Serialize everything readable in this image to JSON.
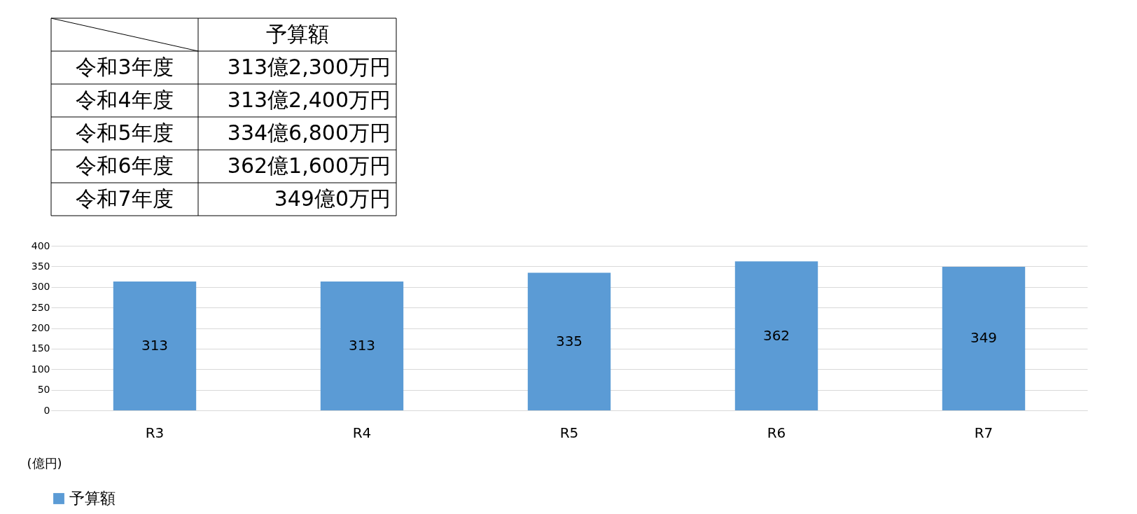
{
  "chart_data": {
    "type": "bar",
    "categories": [
      "R3",
      "R4",
      "R5",
      "R6",
      "R7"
    ],
    "series": [
      {
        "name": "予算額",
        "color": "#5b9bd5",
        "values": [
          313.23,
          313.24,
          334.68,
          362.16,
          349.0
        ]
      }
    ],
    "value_labels": [
      "313",
      "313",
      "335",
      "362",
      "349"
    ],
    "ylabel": "(億円)",
    "ylim": [
      0,
      400
    ],
    "yticks": [
      0,
      50,
      100,
      150,
      200,
      250,
      300,
      350,
      400
    ],
    "grid": "y",
    "legend": "bottom",
    "annotations": [
      "予算額",
      "令和3年度",
      "313億2,300万円",
      "令和4年度",
      "313億2,400万円",
      "令和5年度",
      "334億6,800万円",
      "令和6年度",
      "362億1,600万円",
      "令和7年度",
      "349億0万円"
    ]
  }
}
